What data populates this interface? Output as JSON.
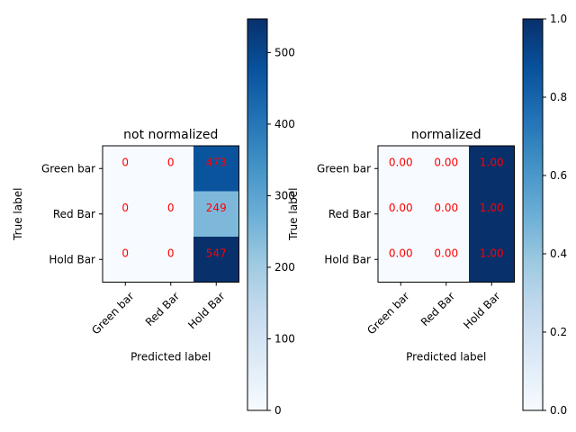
{
  "chart_data": [
    {
      "type": "heatmap",
      "title": "not normalized",
      "xlabel": "Predicted label",
      "ylabel": "True label",
      "x_categories": [
        "Green bar",
        "Red Bar",
        "Hold Bar"
      ],
      "y_categories": [
        "Green bar",
        "Red Bar",
        "Hold Bar"
      ],
      "values": [
        [
          0,
          0,
          473
        ],
        [
          0,
          0,
          249
        ],
        [
          0,
          0,
          547
        ]
      ],
      "cell_labels": [
        [
          "0",
          "0",
          "473"
        ],
        [
          "0",
          "0",
          "249"
        ],
        [
          "0",
          "0",
          "547"
        ]
      ],
      "colorbar": {
        "range": [
          0,
          547
        ],
        "ticks": [
          0,
          100,
          200,
          300,
          400,
          500
        ],
        "tick_labels": [
          "0",
          "100",
          "200",
          "300",
          "400",
          "500"
        ]
      },
      "colormap": "Blues",
      "label_color": "#ff0000"
    },
    {
      "type": "heatmap",
      "title": "normalized",
      "xlabel": "Predicted label",
      "ylabel": "True label",
      "x_categories": [
        "Green bar",
        "Red Bar",
        "Hold Bar"
      ],
      "y_categories": [
        "Green bar",
        "Red Bar",
        "Hold Bar"
      ],
      "values": [
        [
          0.0,
          0.0,
          1.0
        ],
        [
          0.0,
          0.0,
          1.0
        ],
        [
          0.0,
          0.0,
          1.0
        ]
      ],
      "cell_labels": [
        [
          "0.00",
          "0.00",
          "1.00"
        ],
        [
          "0.00",
          "0.00",
          "1.00"
        ],
        [
          "0.00",
          "0.00",
          "1.00"
        ]
      ],
      "colorbar": {
        "range": [
          0,
          1
        ],
        "ticks": [
          0,
          0.2,
          0.4,
          0.6,
          0.8,
          1.0
        ],
        "tick_labels": [
          "0.0",
          "0.2",
          "0.4",
          "0.6",
          "0.8",
          "1.0"
        ]
      },
      "colormap": "Blues",
      "label_color": "#ff0000"
    }
  ]
}
